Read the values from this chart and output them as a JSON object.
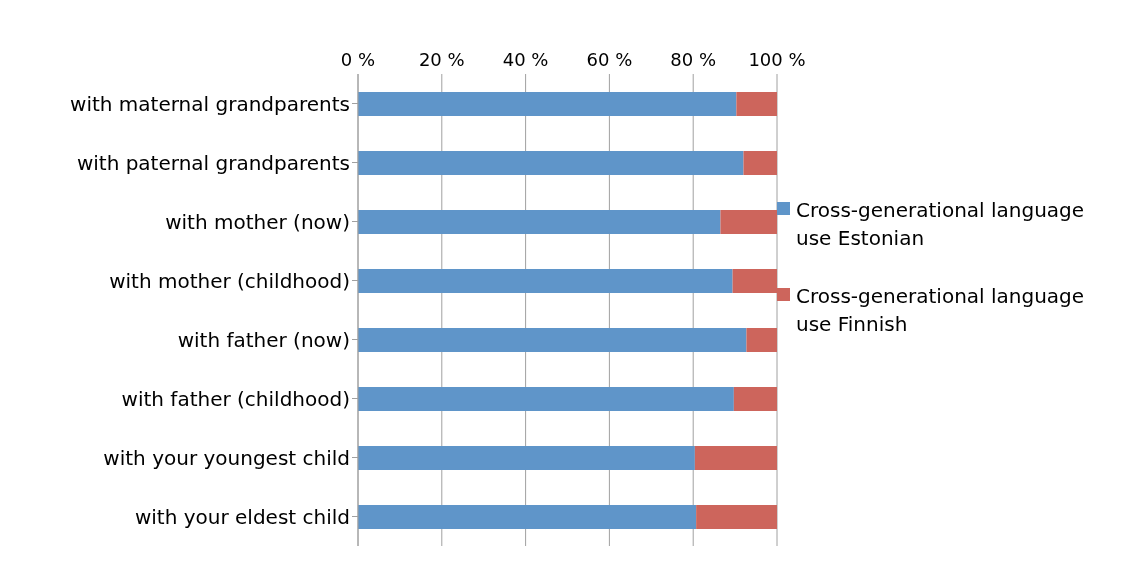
{
  "chart_data": {
    "type": "bar",
    "orientation": "horizontal",
    "stacked": true,
    "categories": [
      "with maternal grandparents",
      "with paternal grandparents",
      "with mother (now)",
      "with mother (childhood)",
      "with father (now)",
      "with father (childhood)",
      "with your youngest child",
      "with your eldest child"
    ],
    "series": [
      {
        "name": "Cross-generational language use Estonian",
        "color": "#5f95c9",
        "values": [
          90.3,
          92,
          86.5,
          89.4,
          92.7,
          89.7,
          80.4,
          80.7
        ]
      },
      {
        "name": "Cross-generational language use Finnish",
        "color": "#cd655c",
        "values": [
          9.7,
          8,
          13.5,
          10.6,
          7.3,
          10.3,
          19.6,
          19.3
        ]
      }
    ],
    "xlim": [
      0,
      100
    ],
    "xticks": [
      {
        "value": 0,
        "label": "0 %"
      },
      {
        "value": 20,
        "label": "20 %"
      },
      {
        "value": 40,
        "label": "40 %"
      },
      {
        "value": 60,
        "label": "60 %"
      },
      {
        "value": 80,
        "label": "80 %"
      },
      {
        "value": 100,
        "label": "100 %"
      }
    ],
    "grid": "x",
    "legend": "right"
  }
}
